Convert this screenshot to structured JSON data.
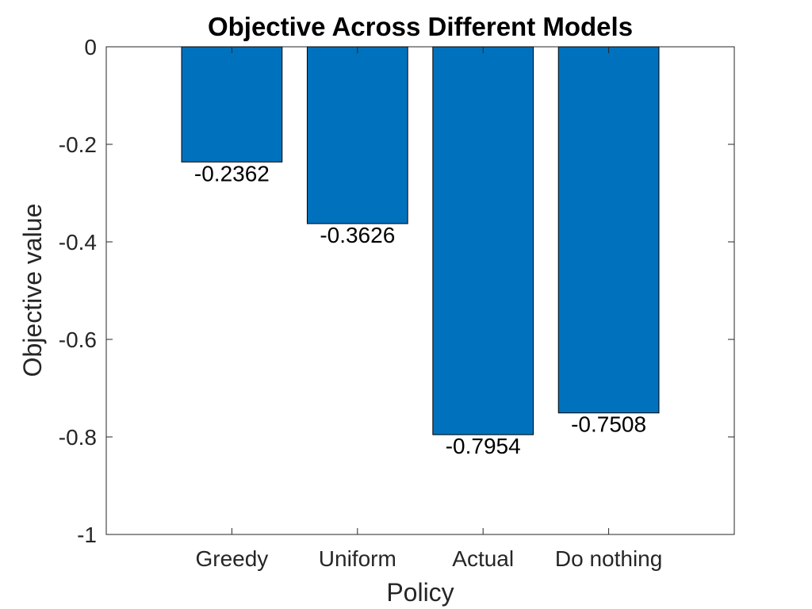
{
  "chart_data": {
    "type": "bar",
    "title": "Objective Across Different Models",
    "xlabel": "Policy",
    "ylabel": "Objective value",
    "categories": [
      "Greedy",
      "Uniform",
      "Actual",
      "Do nothing"
    ],
    "values": [
      -0.2362,
      -0.3626,
      -0.7954,
      -0.7508
    ],
    "value_labels": [
      "-0.2362",
      "-0.3626",
      "-0.7954",
      "-0.7508"
    ],
    "ylim": [
      -1,
      0
    ],
    "yticks": [
      0,
      -0.2,
      -0.4,
      -0.6,
      -0.8,
      -1
    ],
    "ytick_labels": [
      "0",
      "-0.2",
      "-0.4",
      "-0.6",
      "-0.8",
      "-1"
    ],
    "grid": false,
    "bar_color": "#0072BD"
  }
}
